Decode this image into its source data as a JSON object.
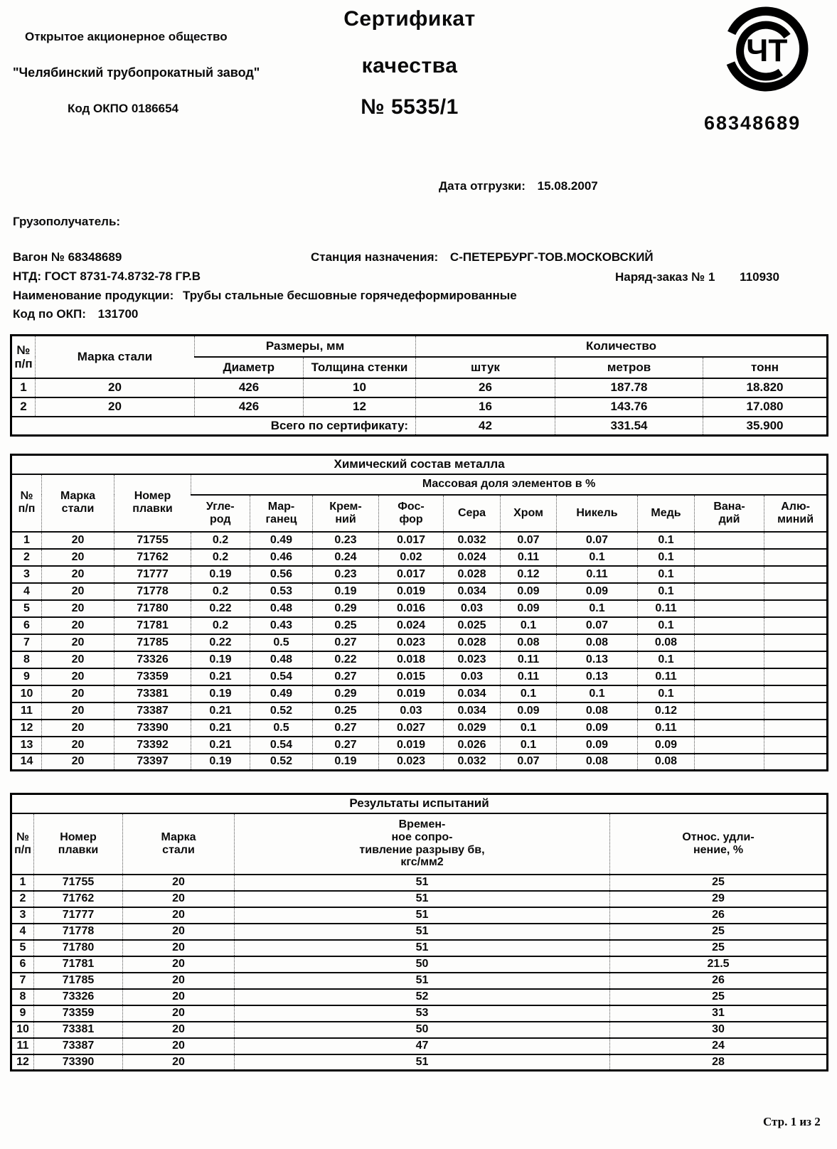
{
  "colors": {
    "ink": "#000000",
    "paper": "#fdfdfc"
  },
  "header": {
    "company_line1": "Открытое акционерное общество",
    "company_line2": "\"Челябинский трубопрокатный завод\"",
    "company_line3": "Код ОКПО 0186654",
    "title_line1": "Сертификат",
    "title_line2": "качества",
    "cert_number": "№ 5535/1",
    "logo_letters": "ЧТ",
    "wagon_code": "68348689"
  },
  "info": {
    "ship_date_label": "Дата отгрузки:",
    "ship_date_value": "15.08.2007",
    "consignee_label": "Грузополучатель:",
    "wagon_label": "Вагон № 68348689",
    "station_label": "Станция назначения:",
    "station_value": "С-ПЕТЕРБУРГ-ТОВ.МОСКОВСКИЙ",
    "ntd_label": "НТД: ГОСТ 8731-74.8732-78 ГР.В",
    "order_label": "Наряд-заказ № 1",
    "order_value": "110930",
    "product_label": "Наименование продукции:",
    "product_value": "Трубы стальные бесшовные горячедеформированные",
    "okp_label": "Код по ОКП:",
    "okp_value": "131700"
  },
  "sizes_table": {
    "headers": {
      "num": "№\nп/п",
      "steel_grade": "Марка стали",
      "sizes_group": "Размеры, мм",
      "diameter": "Диаметр",
      "wall_thickness": "Толщина стенки",
      "qty_group": "Количество",
      "pieces": "штук",
      "meters": "метров",
      "tons": "тонн"
    },
    "rows": [
      [
        "1",
        "20",
        "426",
        "10",
        "26",
        "187.78",
        "18.820"
      ],
      [
        "2",
        "20",
        "426",
        "12",
        "16",
        "143.76",
        "17.080"
      ]
    ],
    "total": {
      "label": "Всего по сертификату:",
      "pieces": "42",
      "meters": "331.54",
      "tons": "35.900"
    }
  },
  "chem_table": {
    "title": "Химический состав металла",
    "headers": {
      "num": "№\nп/п",
      "steel_grade": "Марка\nстали",
      "heat_number": "Номер\nплавки",
      "mass_fraction_group": "Массовая доля элементов в %",
      "carbon": "Угле-\nрод",
      "manganese": "Мар-\nганец",
      "silicon": "Крем-\nний",
      "phosphorus": "Фос-\nфор",
      "sulfur": "Сера",
      "chromium": "Хром",
      "nickel": "Никель",
      "copper": "Медь",
      "vanadium": "Вана-\nдий",
      "aluminium": "Алю-\nминий"
    },
    "rows": [
      [
        "1",
        "20",
        "71755",
        "0.2",
        "0.49",
        "0.23",
        "0.017",
        "0.032",
        "0.07",
        "0.07",
        "0.1",
        "",
        ""
      ],
      [
        "2",
        "20",
        "71762",
        "0.2",
        "0.46",
        "0.24",
        "0.02",
        "0.024",
        "0.11",
        "0.1",
        "0.1",
        "",
        ""
      ],
      [
        "3",
        "20",
        "71777",
        "0.19",
        "0.56",
        "0.23",
        "0.017",
        "0.028",
        "0.12",
        "0.11",
        "0.1",
        "",
        ""
      ],
      [
        "4",
        "20",
        "71778",
        "0.2",
        "0.53",
        "0.19",
        "0.019",
        "0.034",
        "0.09",
        "0.09",
        "0.1",
        "",
        ""
      ],
      [
        "5",
        "20",
        "71780",
        "0.22",
        "0.48",
        "0.29",
        "0.016",
        "0.03",
        "0.09",
        "0.1",
        "0.11",
        "",
        ""
      ],
      [
        "6",
        "20",
        "71781",
        "0.2",
        "0.43",
        "0.25",
        "0.024",
        "0.025",
        "0.1",
        "0.07",
        "0.1",
        "",
        ""
      ],
      [
        "7",
        "20",
        "71785",
        "0.22",
        "0.5",
        "0.27",
        "0.023",
        "0.028",
        "0.08",
        "0.08",
        "0.08",
        "",
        ""
      ],
      [
        "8",
        "20",
        "73326",
        "0.19",
        "0.48",
        "0.22",
        "0.018",
        "0.023",
        "0.11",
        "0.13",
        "0.1",
        "",
        ""
      ],
      [
        "9",
        "20",
        "73359",
        "0.21",
        "0.54",
        "0.27",
        "0.015",
        "0.03",
        "0.11",
        "0.13",
        "0.11",
        "",
        ""
      ],
      [
        "10",
        "20",
        "73381",
        "0.19",
        "0.49",
        "0.29",
        "0.019",
        "0.034",
        "0.1",
        "0.1",
        "0.1",
        "",
        ""
      ],
      [
        "11",
        "20",
        "73387",
        "0.21",
        "0.52",
        "0.25",
        "0.03",
        "0.034",
        "0.09",
        "0.08",
        "0.12",
        "",
        ""
      ],
      [
        "12",
        "20",
        "73390",
        "0.21",
        "0.5",
        "0.27",
        "0.027",
        "0.029",
        "0.1",
        "0.09",
        "0.11",
        "",
        ""
      ],
      [
        "13",
        "20",
        "73392",
        "0.21",
        "0.54",
        "0.27",
        "0.019",
        "0.026",
        "0.1",
        "0.09",
        "0.09",
        "",
        ""
      ],
      [
        "14",
        "20",
        "73397",
        "0.19",
        "0.52",
        "0.19",
        "0.023",
        "0.032",
        "0.07",
        "0.08",
        "0.08",
        "",
        ""
      ]
    ]
  },
  "test_table": {
    "title": "Результаты испытаний",
    "headers": {
      "num": "№\nп/п",
      "heat_number": "Номер\nплавки",
      "steel_grade": "Марка\nстали",
      "tensile_strength": "Времен-\nное сопро-\nтивление разрыву бв,\nкгс/мм2",
      "elongation": "Относ. удли-\nнение, %"
    },
    "rows": [
      [
        "1",
        "71755",
        "20",
        "51",
        "25"
      ],
      [
        "2",
        "71762",
        "20",
        "51",
        "29"
      ],
      [
        "3",
        "71777",
        "20",
        "51",
        "26"
      ],
      [
        "4",
        "71778",
        "20",
        "51",
        "25"
      ],
      [
        "5",
        "71780",
        "20",
        "51",
        "25"
      ],
      [
        "6",
        "71781",
        "20",
        "50",
        "21.5"
      ],
      [
        "7",
        "71785",
        "20",
        "51",
        "26"
      ],
      [
        "8",
        "73326",
        "20",
        "52",
        "25"
      ],
      [
        "9",
        "73359",
        "20",
        "53",
        "31"
      ],
      [
        "10",
        "73381",
        "20",
        "50",
        "30"
      ],
      [
        "11",
        "73387",
        "20",
        "47",
        "24"
      ],
      [
        "12",
        "73390",
        "20",
        "51",
        "28"
      ]
    ]
  },
  "footer": {
    "page_indicator": "Стр. 1 из 2"
  }
}
